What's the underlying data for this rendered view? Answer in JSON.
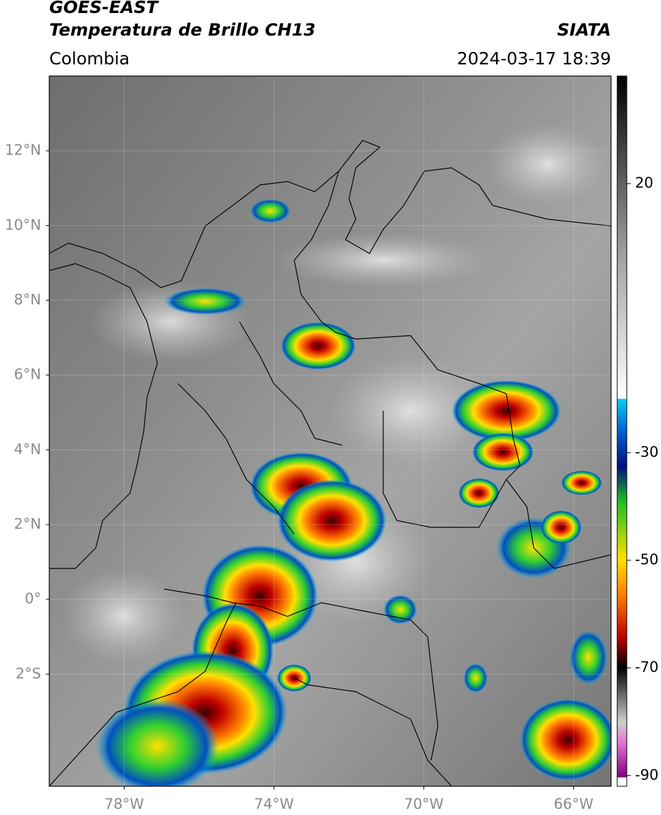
{
  "map": {
    "title": "GOES-EAST",
    "subtitle": "Temperatura de Brillo CH13",
    "source": "SIATA",
    "region": "Colombia",
    "datetime": "2024-03-17 18:39",
    "xlim": [
      -80,
      -65
    ],
    "ylim": [
      -5,
      14
    ],
    "xticks": [
      {
        "value": -78,
        "label": "78°W"
      },
      {
        "value": -74,
        "label": "74°W"
      },
      {
        "value": -70,
        "label": "70°W"
      },
      {
        "value": -66,
        "label": "66°W"
      }
    ],
    "yticks": [
      {
        "value": 12,
        "label": "12°N"
      },
      {
        "value": 10,
        "label": "10°N"
      },
      {
        "value": 8,
        "label": "8°N"
      },
      {
        "value": 6,
        "label": "6°N"
      },
      {
        "value": 4,
        "label": "4°N"
      },
      {
        "value": 2,
        "label": "2°N"
      },
      {
        "value": 0,
        "label": "0°"
      },
      {
        "value": -2,
        "label": "2°S"
      }
    ],
    "grid": true,
    "colorbar": {
      "lim": [
        -92,
        40
      ],
      "ticks": [
        20,
        -30,
        -50,
        -70,
        -90
      ]
    }
  }
}
